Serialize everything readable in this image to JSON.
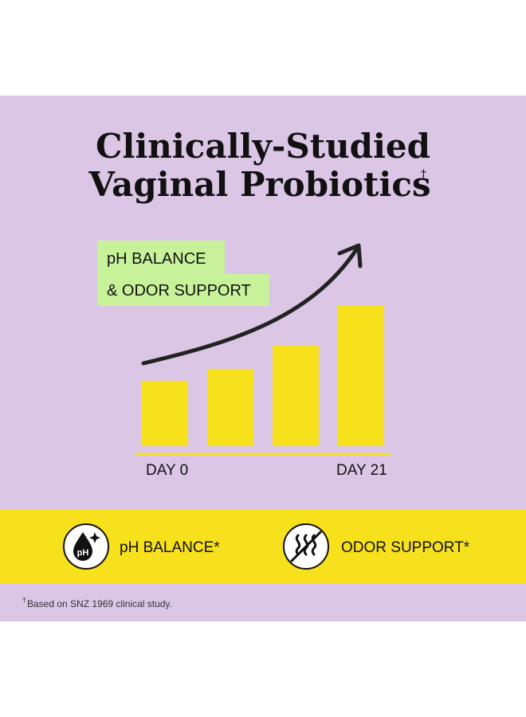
{
  "title": {
    "line1": "Clinically-Studied",
    "line2": "Vaginal Probiotics",
    "mark": "†"
  },
  "callout": {
    "line1": "pH BALANCE",
    "line2": "& ODOR SUPPORT"
  },
  "chart": {
    "start_label": "DAY 0",
    "end_label": "DAY 21"
  },
  "benefits": [
    {
      "icon_text": "pH",
      "label": "pH BALANCE*"
    },
    {
      "label": "ODOR SUPPORT*"
    }
  ],
  "footnote": {
    "mark": "†",
    "text": "Based on SNZ 1969 clinical study."
  }
}
